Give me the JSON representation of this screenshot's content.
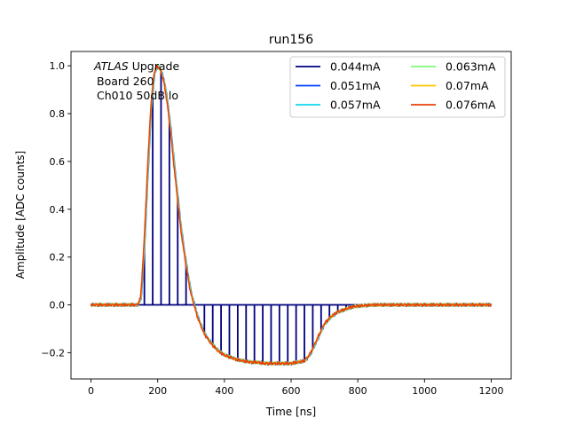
{
  "chart_data": {
    "type": "line",
    "title": "run156",
    "xlabel": "Time [ns]",
    "ylabel": "Amplitude [ADC counts]",
    "xlim": [
      -60,
      1260
    ],
    "ylim": [
      -0.31,
      1.06
    ],
    "xticks": [
      0,
      200,
      400,
      600,
      800,
      1000,
      1200
    ],
    "yticks": [
      -0.2,
      0.0,
      0.2,
      0.4,
      0.6,
      0.8,
      1.0
    ],
    "xtick_labels": [
      "0",
      "200",
      "400",
      "600",
      "800",
      "1000",
      "1200"
    ],
    "ytick_labels": [
      "−0.2",
      "0.0",
      "0.2",
      "0.4",
      "0.6",
      "0.8",
      "1.0"
    ],
    "annotation": {
      "line1_italic": "ATLAS",
      "line1_rest": " Upgrade",
      "line2": "Board 260",
      "line3": "Ch010 50dB lo"
    },
    "legend_position": "top-right",
    "legend_columns": 2,
    "pulse_shape": {
      "x": [
        0,
        100,
        140,
        150,
        160,
        170,
        180,
        190,
        200,
        210,
        220,
        230,
        240,
        250,
        260,
        270,
        280,
        290,
        300,
        320,
        340,
        360,
        380,
        400,
        420,
        440,
        460,
        480,
        500,
        520,
        540,
        560,
        580,
        600,
        620,
        640,
        650,
        660,
        670,
        680,
        690,
        700,
        720,
        740,
        760,
        780,
        800,
        850,
        900,
        1000,
        1100,
        1200
      ],
      "y": [
        0.0,
        0.0,
        0.0,
        0.03,
        0.25,
        0.55,
        0.82,
        0.97,
        1.0,
        0.98,
        0.93,
        0.84,
        0.72,
        0.58,
        0.45,
        0.32,
        0.22,
        0.13,
        0.05,
        -0.05,
        -0.12,
        -0.16,
        -0.19,
        -0.21,
        -0.22,
        -0.23,
        -0.235,
        -0.24,
        -0.24,
        -0.245,
        -0.245,
        -0.245,
        -0.245,
        -0.245,
        -0.24,
        -0.235,
        -0.22,
        -0.2,
        -0.17,
        -0.14,
        -0.11,
        -0.08,
        -0.05,
        -0.03,
        -0.02,
        -0.01,
        -0.005,
        0.0,
        0.0,
        0.0,
        0.0,
        0.0
      ]
    },
    "sampled_series_pulses_ns": [
      160,
      185,
      210,
      235,
      260,
      285,
      340,
      365,
      390,
      415,
      440,
      465,
      490,
      515,
      540,
      565,
      590,
      615,
      640,
      665,
      690,
      715,
      740,
      765,
      790,
      815,
      840
    ],
    "series": [
      {
        "name": "0.044mA",
        "color": "#00007f",
        "style": "sampled"
      },
      {
        "name": "0.051mA",
        "color": "#0040ff",
        "style": "continuous"
      },
      {
        "name": "0.057mA",
        "color": "#10d4e8",
        "style": "continuous"
      },
      {
        "name": "0.063mA",
        "color": "#7df97a",
        "style": "continuous"
      },
      {
        "name": "0.07mA",
        "color": "#ffc400",
        "style": "continuous"
      },
      {
        "name": "0.076mA",
        "color": "#e8400b",
        "style": "continuous"
      }
    ]
  }
}
